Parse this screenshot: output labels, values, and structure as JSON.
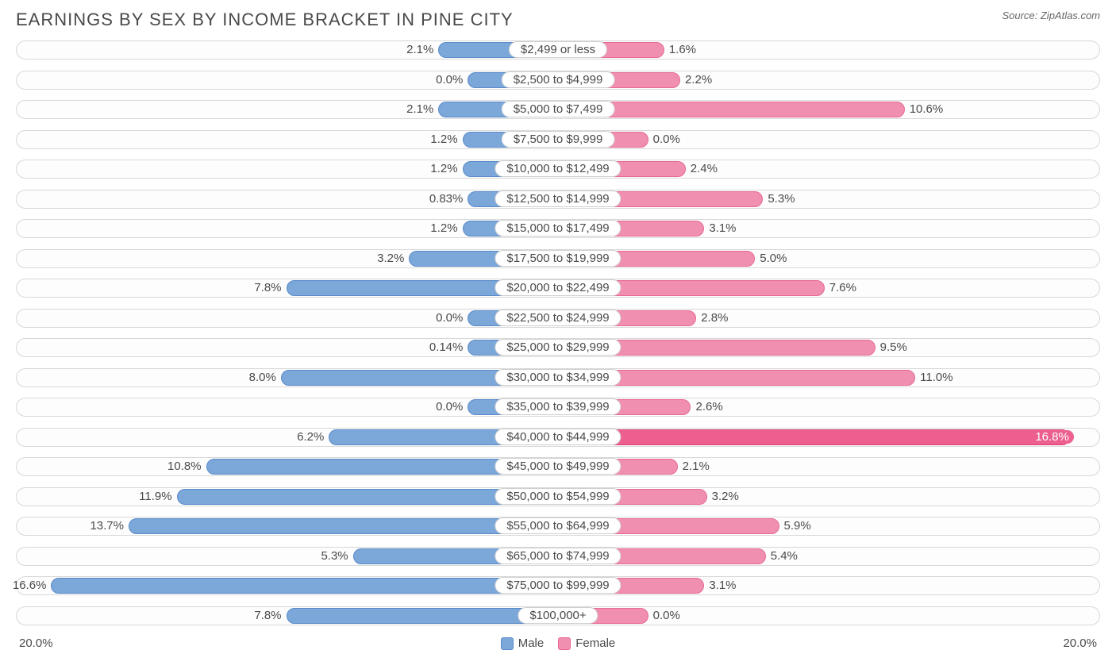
{
  "title": "EARNINGS BY SEX BY INCOME BRACKET IN PINE CITY",
  "source": "Source: ZipAtlas.com",
  "chart": {
    "type": "diverging-bar",
    "axis_max": 20.0,
    "axis_label_left": "20.0%",
    "axis_label_right": "20.0%",
    "male_color": "#7ba7d9",
    "male_border": "#5a8bc9",
    "female_color": "#f08fb0",
    "female_border": "#e66a96",
    "female_highlight_color": "#ec5f8f",
    "track_border": "#d8d8d8",
    "track_bg": "#fdfdfd",
    "legend": {
      "male": "Male",
      "female": "Female"
    },
    "rows": [
      {
        "category": "$2,499 or less",
        "male": 2.1,
        "male_label": "2.1%",
        "female": 1.6,
        "female_label": "1.6%",
        "min_male": 2.1,
        "min_female": 1.6,
        "highlight": false
      },
      {
        "category": "$2,500 to $4,999",
        "male": 0.0,
        "male_label": "0.0%",
        "female": 2.2,
        "female_label": "2.2%",
        "min_male": 1.0,
        "min_female": 2.2,
        "highlight": false
      },
      {
        "category": "$5,000 to $7,499",
        "male": 2.1,
        "male_label": "2.1%",
        "female": 10.6,
        "female_label": "10.6%",
        "min_male": 2.1,
        "min_female": 10.6,
        "highlight": false
      },
      {
        "category": "$7,500 to $9,999",
        "male": 1.2,
        "male_label": "1.2%",
        "female": 0.0,
        "female_label": "0.0%",
        "min_male": 1.2,
        "min_female": 1.0,
        "highlight": false
      },
      {
        "category": "$10,000 to $12,499",
        "male": 1.2,
        "male_label": "1.2%",
        "female": 2.4,
        "female_label": "2.4%",
        "min_male": 1.2,
        "min_female": 2.4,
        "highlight": false
      },
      {
        "category": "$12,500 to $14,999",
        "male": 0.83,
        "male_label": "0.83%",
        "female": 5.3,
        "female_label": "5.3%",
        "min_male": 1.0,
        "min_female": 5.3,
        "highlight": false
      },
      {
        "category": "$15,000 to $17,499",
        "male": 1.2,
        "male_label": "1.2%",
        "female": 3.1,
        "female_label": "3.1%",
        "min_male": 1.2,
        "min_female": 3.1,
        "highlight": false
      },
      {
        "category": "$17,500 to $19,999",
        "male": 3.2,
        "male_label": "3.2%",
        "female": 5.0,
        "female_label": "5.0%",
        "min_male": 3.2,
        "min_female": 5.0,
        "highlight": false
      },
      {
        "category": "$20,000 to $22,499",
        "male": 7.8,
        "male_label": "7.8%",
        "female": 7.6,
        "female_label": "7.6%",
        "min_male": 7.8,
        "min_female": 7.6,
        "highlight": false
      },
      {
        "category": "$22,500 to $24,999",
        "male": 0.0,
        "male_label": "0.0%",
        "female": 2.8,
        "female_label": "2.8%",
        "min_male": 1.0,
        "min_female": 2.8,
        "highlight": false
      },
      {
        "category": "$25,000 to $29,999",
        "male": 0.14,
        "male_label": "0.14%",
        "female": 9.5,
        "female_label": "9.5%",
        "min_male": 1.0,
        "min_female": 9.5,
        "highlight": false
      },
      {
        "category": "$30,000 to $34,999",
        "male": 8.0,
        "male_label": "8.0%",
        "female": 11.0,
        "female_label": "11.0%",
        "min_male": 8.0,
        "min_female": 11.0,
        "highlight": false
      },
      {
        "category": "$35,000 to $39,999",
        "male": 0.0,
        "male_label": "0.0%",
        "female": 2.6,
        "female_label": "2.6%",
        "min_male": 1.0,
        "min_female": 2.6,
        "highlight": false
      },
      {
        "category": "$40,000 to $44,999",
        "male": 6.2,
        "male_label": "6.2%",
        "female": 16.8,
        "female_label": "16.8%",
        "min_male": 6.2,
        "min_female": 16.8,
        "highlight": true
      },
      {
        "category": "$45,000 to $49,999",
        "male": 10.8,
        "male_label": "10.8%",
        "female": 2.1,
        "female_label": "2.1%",
        "min_male": 10.8,
        "min_female": 2.1,
        "highlight": false
      },
      {
        "category": "$50,000 to $54,999",
        "male": 11.9,
        "male_label": "11.9%",
        "female": 3.2,
        "female_label": "3.2%",
        "min_male": 11.9,
        "min_female": 3.2,
        "highlight": false
      },
      {
        "category": "$55,000 to $64,999",
        "male": 13.7,
        "male_label": "13.7%",
        "female": 5.9,
        "female_label": "5.9%",
        "min_male": 13.7,
        "min_female": 5.9,
        "highlight": false
      },
      {
        "category": "$65,000 to $74,999",
        "male": 5.3,
        "male_label": "5.3%",
        "female": 5.4,
        "female_label": "5.4%",
        "min_male": 5.3,
        "min_female": 5.4,
        "highlight": false
      },
      {
        "category": "$75,000 to $99,999",
        "male": 16.6,
        "male_label": "16.6%",
        "female": 3.1,
        "female_label": "3.1%",
        "min_male": 16.6,
        "min_female": 3.1,
        "highlight": false
      },
      {
        "category": "$100,000+",
        "male": 7.8,
        "male_label": "7.8%",
        "female": 0.0,
        "female_label": "0.0%",
        "min_male": 7.8,
        "min_female": 1.0,
        "highlight": false
      }
    ]
  }
}
